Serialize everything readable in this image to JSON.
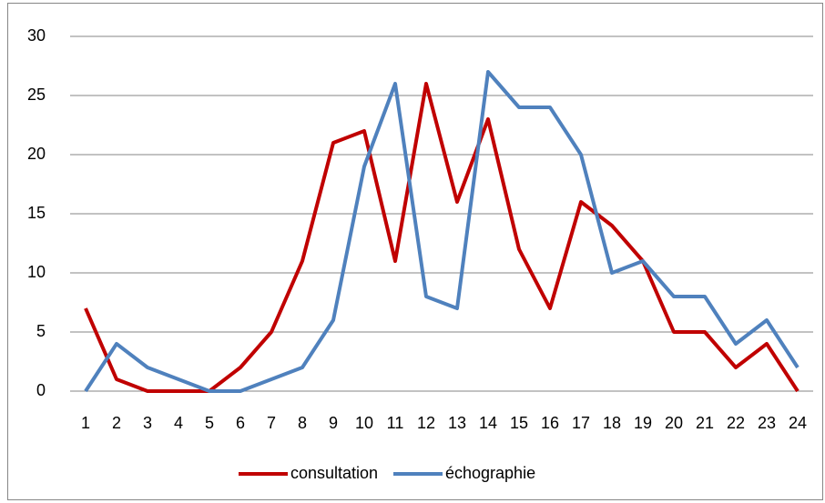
{
  "chart_data": {
    "type": "line",
    "categories": [
      "1",
      "2",
      "3",
      "4",
      "5",
      "6",
      "7",
      "8",
      "9",
      "10",
      "11",
      "12",
      "13",
      "14",
      "15",
      "16",
      "17",
      "18",
      "19",
      "20",
      "21",
      "22",
      "23",
      "24"
    ],
    "series": [
      {
        "name": "consultation",
        "color": "#c00000",
        "values": [
          7,
          1,
          0,
          0,
          0,
          2,
          5,
          11,
          21,
          22,
          11,
          26,
          16,
          23,
          12,
          7,
          16,
          14,
          11,
          5,
          5,
          2,
          4,
          0
        ]
      },
      {
        "name": "échographie",
        "color": "#4f81bd",
        "values": [
          0,
          4,
          2,
          1,
          0,
          0,
          1,
          2,
          6,
          19,
          26,
          8,
          7,
          27,
          24,
          24,
          20,
          10,
          11,
          8,
          8,
          4,
          6,
          2
        ]
      }
    ],
    "ylim": [
      0,
      30
    ],
    "yticks": [
      0,
      5,
      10,
      15,
      20,
      25,
      30
    ],
    "grid": true,
    "legend": "bottom"
  }
}
